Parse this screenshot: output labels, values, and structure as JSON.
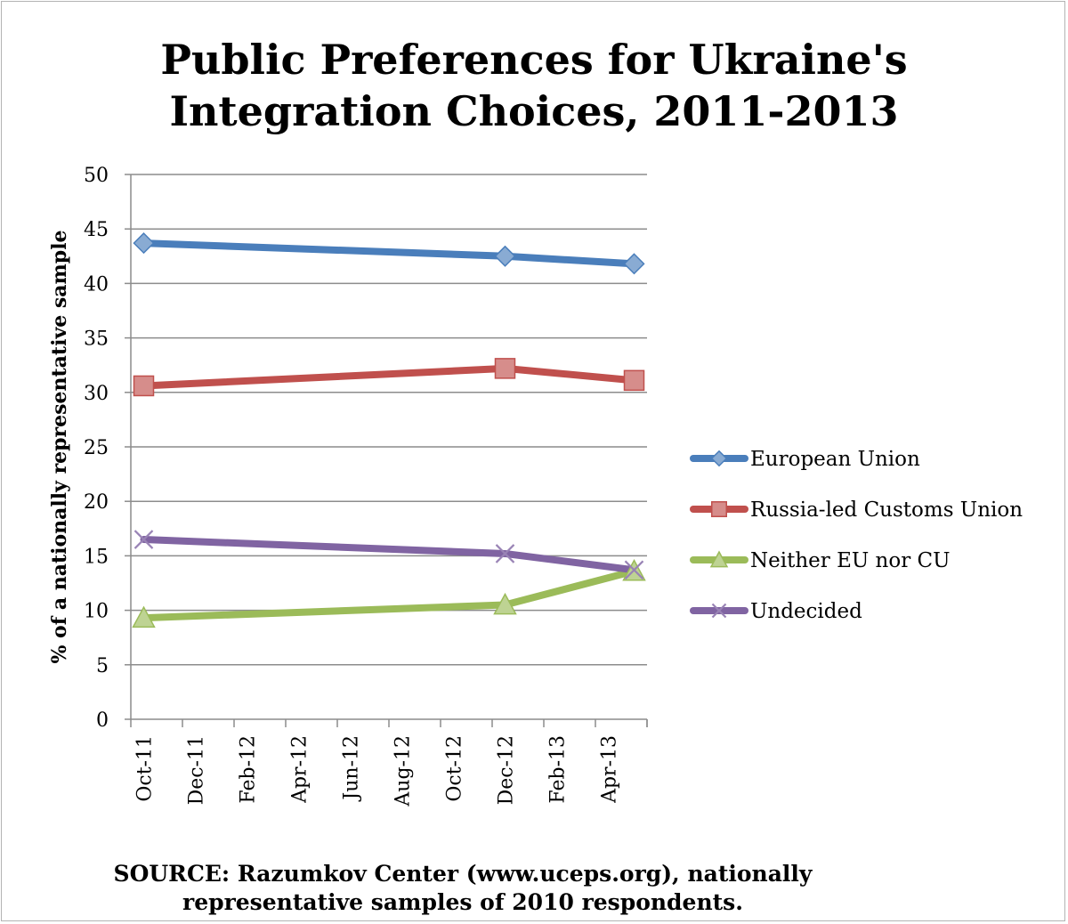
{
  "chart_data": {
    "type": "line",
    "title_lines": [
      "Public Preferences for Ukraine's",
      "Integration Choices, 2011-2013"
    ],
    "ylabel": "% of a nationally representative sample",
    "xlabel": "",
    "ylim": [
      0,
      50
    ],
    "y_ticks": [
      "0",
      "5",
      "10",
      "15",
      "20",
      "25",
      "30",
      "35",
      "40",
      "45",
      "50"
    ],
    "x_tick_labels": [
      "Oct-11",
      "Dec-11",
      "Feb-12",
      "Apr-12",
      "Jun-12",
      "Aug-12",
      "Oct-12",
      "Dec-12",
      "Feb-13",
      "Apr-13"
    ],
    "x_range": [
      "2011-10",
      "2013-05"
    ],
    "grid": "horizontal",
    "legend_position": "right",
    "x": [
      "2011-10",
      "2012-12",
      "2013-05"
    ],
    "series": [
      {
        "name": "European Union",
        "values": [
          43.7,
          42.5,
          41.8
        ],
        "color": "#4a7ebb",
        "marker": "diamond"
      },
      {
        "name": "Russia-led Customs Union",
        "values": [
          30.6,
          32.2,
          31.1
        ],
        "color": "#c0504d",
        "marker": "square"
      },
      {
        "name": "Neither EU nor CU",
        "values": [
          9.3,
          10.5,
          13.6
        ],
        "color": "#9bbb59",
        "marker": "triangle"
      },
      {
        "name": "Undecided",
        "values": [
          16.5,
          15.2,
          13.7
        ],
        "color": "#8064a2",
        "marker": "x"
      }
    ]
  },
  "source_lines": [
    "SOURCE: Razumkov Center (www.uceps.org),  nationally",
    "representative samples of 2010 respondents."
  ]
}
